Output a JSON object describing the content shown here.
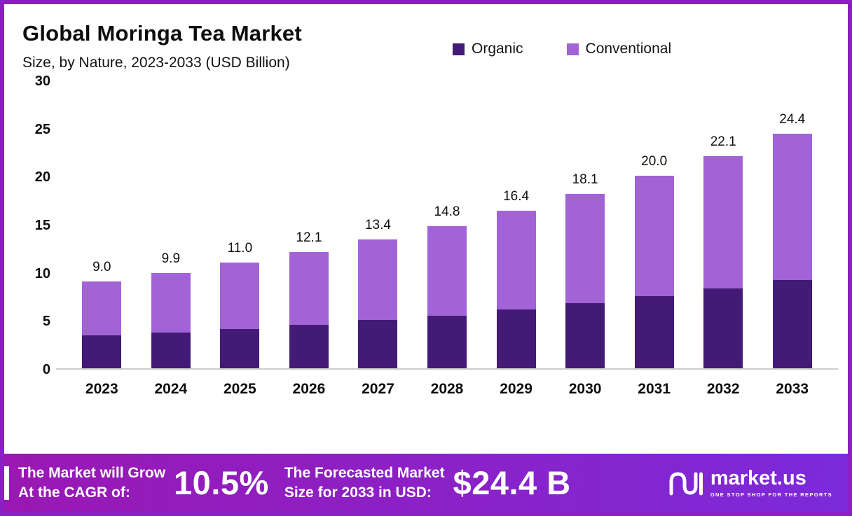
{
  "header": {
    "title": "Global Moringa Tea Market",
    "subtitle": "Size, by Nature, 2023-2033 (USD Billion)"
  },
  "chart_data": {
    "type": "bar",
    "stacked": true,
    "title": "Global Moringa Tea Market Size, by Nature, 2023-2033 (USD Billion)",
    "categories": [
      "2023",
      "2024",
      "2025",
      "2026",
      "2027",
      "2028",
      "2029",
      "2030",
      "2031",
      "2032",
      "2033"
    ],
    "series": [
      {
        "name": "Organic",
        "color": "#431a75",
        "values": [
          3.4,
          3.7,
          4.1,
          4.5,
          5.0,
          5.5,
          6.1,
          6.8,
          7.5,
          8.3,
          9.2
        ]
      },
      {
        "name": "Conventional",
        "color": "#a263d6",
        "values": [
          5.6,
          6.2,
          6.9,
          7.6,
          8.4,
          9.3,
          10.3,
          11.3,
          12.5,
          13.8,
          15.2
        ]
      }
    ],
    "totals": [
      9.0,
      9.9,
      11.0,
      12.1,
      13.4,
      14.8,
      16.4,
      18.1,
      20.0,
      22.1,
      24.4
    ],
    "total_labels": [
      "9.0",
      "9.9",
      "11.0",
      "12.1",
      "13.4",
      "14.8",
      "16.4",
      "18.1",
      "20.0",
      "22.1",
      "24.4"
    ],
    "xlabel": "",
    "ylabel": "",
    "ylim": [
      0,
      30
    ],
    "yticks": [
      0,
      5,
      10,
      15,
      20,
      25,
      30
    ],
    "grid": false,
    "legend_position": "top"
  },
  "banner": {
    "cagr_line1": "The Market will Grow",
    "cagr_line2": "At the CAGR of:",
    "cagr_value": "10.5%",
    "forecast_line1": "The Forecasted Market",
    "forecast_line2": "Size for 2033 in USD:",
    "forecast_value": "$24.4 B",
    "brand": "market.us",
    "brand_tagline": "ONE STOP SHOP FOR THE REPORTS"
  },
  "colors": {
    "frame_border": "#8b1fc4",
    "banner_gradient_start": "#9a18b3",
    "banner_gradient_end": "#7c2ada",
    "organic": "#431a75",
    "conventional": "#a263d6",
    "axis_line": "#cdcdcd",
    "text": "#0d0d0d",
    "banner_text": "#ffffff"
  }
}
